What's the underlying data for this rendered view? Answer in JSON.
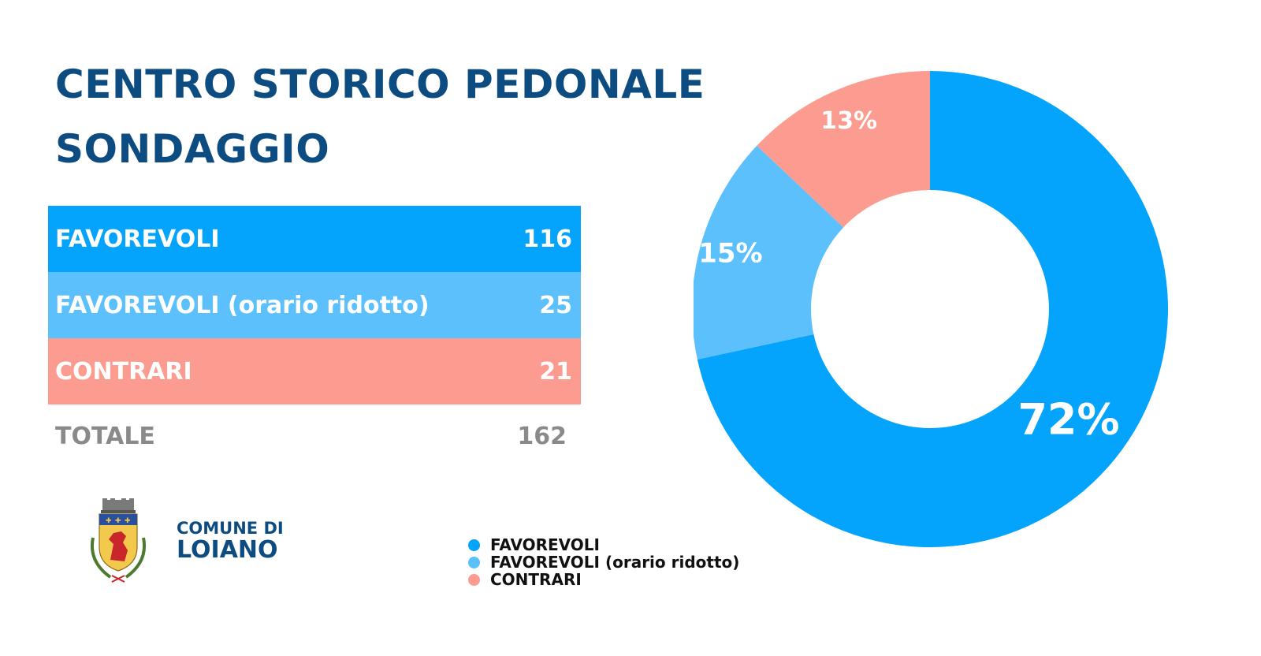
{
  "header": {
    "title_line1": "CENTRO STORICO PEDONALE",
    "title_line2": "SONDAGGIO"
  },
  "table": {
    "rows": [
      {
        "label": "FAVOREVOLI",
        "value": "116"
      },
      {
        "label": "FAVOREVOLI (orario ridotto)",
        "value": "25"
      },
      {
        "label": "CONTRARI",
        "value": "21"
      }
    ],
    "total_label": "TOTALE",
    "total_value": "162"
  },
  "branding": {
    "line1": "COMUNE DI",
    "line2": "LOIANO",
    "emblem_icon": "coat-of-arms-icon"
  },
  "colors": {
    "favorevoli": "#04a3fc",
    "favorevoli_ridotto": "#5cc0fc",
    "contrari": "#fc9c91",
    "title": "#0d4c80"
  },
  "chart_data": {
    "type": "pie",
    "donut": true,
    "categories": [
      "FAVOREVOLI",
      "FAVOREVOLI (orario ridotto)",
      "CONTRARI"
    ],
    "values": [
      116,
      25,
      21
    ],
    "labels": [
      "72%",
      "15%",
      "13%"
    ],
    "colors": [
      "#04a3fc",
      "#5cc0fc",
      "#fc9c91"
    ],
    "legend": "bottom-left"
  }
}
